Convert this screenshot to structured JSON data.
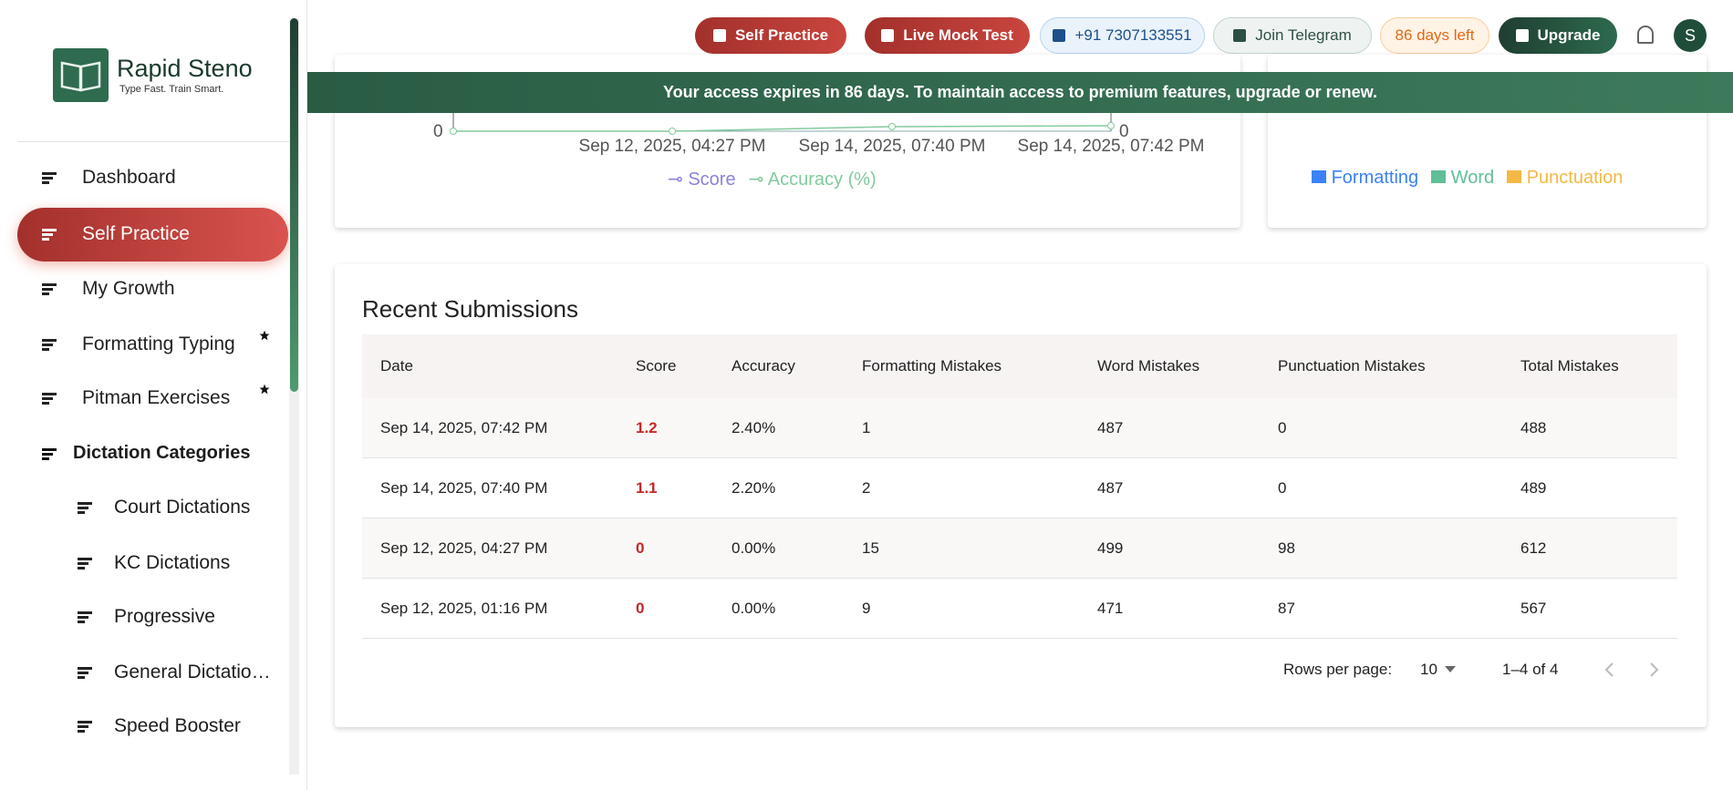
{
  "sidebar": {
    "brand": {
      "name": "Rapid Steno",
      "tagline": "Type Fast. Train Smart."
    },
    "nav": [
      "Dashboard",
      "Self Practice",
      "My Growth",
      "Formatting Typing",
      "Pitman Exercises"
    ],
    "section": "Dictation Categories",
    "sub_nav": [
      "Court Dictations",
      "KC Dictations",
      "Progressive",
      "General Dictatio…",
      "Speed Booster"
    ]
  },
  "topbar": {
    "buttons": [
      "Self Practice",
      "Live Mock Test",
      "+91 7307133551",
      "Join Telegram",
      "86 days left",
      "Upgrade"
    ],
    "avatar": "S"
  },
  "banner": "Your access expires in 86 days. To maintain access to premium features, upgrade or renew.",
  "chart_card": {
    "y_left_tick": 0,
    "y_right_tick": 0,
    "x_labels": [
      "Sep 12, 2025, 04:27 PM",
      "Sep 14, 2025, 07:40 PM",
      "Sep 14, 2025, 07:42 PM"
    ],
    "legend": [
      "Score",
      "Accuracy (%)"
    ]
  },
  "breakdown_card": {
    "legend": [
      "Formatting",
      "Word",
      "Punctuation"
    ]
  },
  "submissions": {
    "title": "Recent Submissions",
    "columns": [
      "Date",
      "Score",
      "Accuracy",
      "Formatting Mistakes",
      "Word Mistakes",
      "Punctuation Mistakes",
      "Total Mistakes"
    ],
    "rows": [
      [
        "Sep 14, 2025, 07:42 PM",
        "1.2",
        "2.40%",
        "1",
        "487",
        "0",
        "488"
      ],
      [
        "Sep 14, 2025, 07:40 PM",
        "1.1",
        "2.20%",
        "2",
        "487",
        "0",
        "489"
      ],
      [
        "Sep 12, 2025, 04:27 PM",
        "0",
        "0.00%",
        "15",
        "499",
        "98",
        "612"
      ],
      [
        "Sep 12, 2025, 01:16 PM",
        "0",
        "0.00%",
        "9",
        "471",
        "87",
        "567"
      ]
    ]
  },
  "pagination": {
    "rows_per_page_label": "Rows per page:",
    "rows_per_page": "10",
    "range": "1–4 of 4"
  }
}
